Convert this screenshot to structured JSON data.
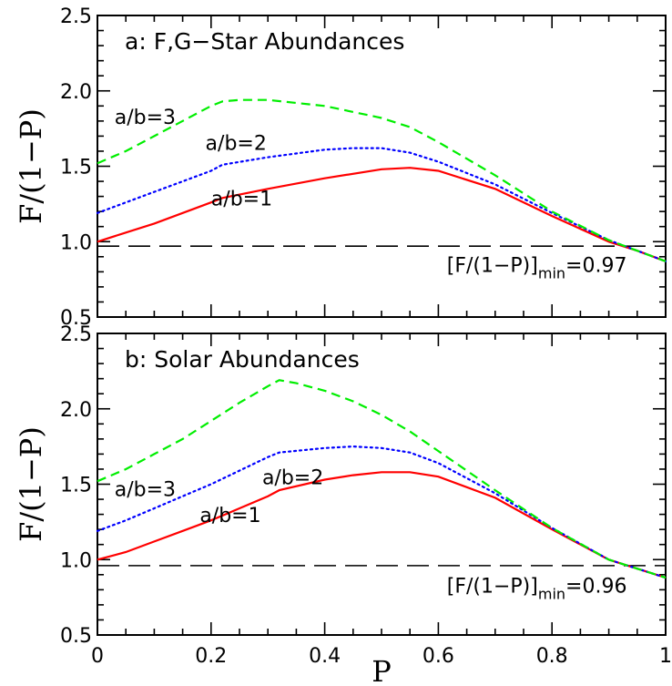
{
  "xlabel": "P",
  "chart_data": [
    {
      "type": "line",
      "title": "a: F,G−Star Abundances",
      "xlabel": "P",
      "ylabel": "F/(1−P)",
      "xlim": [
        0,
        1
      ],
      "ylim": [
        0.5,
        2.5
      ],
      "xticks": [
        "0",
        "0.2",
        "0.4",
        "0.6",
        "0.8",
        "1"
      ],
      "yticks": [
        "0.5",
        "1.0",
        "1.5",
        "2.0",
        "2.5"
      ],
      "series": [
        {
          "name": "a/b=1",
          "color": "#ff0000",
          "style": "solid",
          "label_at": [
            0.2,
            1.24
          ],
          "x": [
            0,
            0.05,
            0.1,
            0.15,
            0.2,
            0.22,
            0.3,
            0.4,
            0.5,
            0.55,
            0.6,
            0.7,
            0.8,
            0.9,
            0.95,
            1.0
          ],
          "y": [
            1.0,
            1.06,
            1.12,
            1.19,
            1.26,
            1.29,
            1.35,
            1.42,
            1.48,
            1.49,
            1.47,
            1.35,
            1.17,
            1.0,
            0.94,
            0.87
          ]
        },
        {
          "name": "a/b=2",
          "color": "#0000ff",
          "style": "dotted",
          "label_at": [
            0.19,
            1.61
          ],
          "x": [
            0,
            0.05,
            0.1,
            0.15,
            0.2,
            0.22,
            0.3,
            0.4,
            0.45,
            0.5,
            0.55,
            0.6,
            0.7,
            0.8,
            0.9,
            0.95,
            1.0
          ],
          "y": [
            1.19,
            1.26,
            1.33,
            1.4,
            1.47,
            1.51,
            1.56,
            1.61,
            1.62,
            1.62,
            1.59,
            1.53,
            1.38,
            1.19,
            1.01,
            0.94,
            0.87
          ]
        },
        {
          "name": "a/b=3",
          "color": "#00ee00",
          "style": "dashed",
          "label_at": [
            0.03,
            1.78
          ],
          "x": [
            0,
            0.05,
            0.1,
            0.15,
            0.2,
            0.22,
            0.25,
            0.3,
            0.35,
            0.4,
            0.5,
            0.55,
            0.6,
            0.7,
            0.8,
            0.9,
            0.95,
            1.0
          ],
          "y": [
            1.52,
            1.6,
            1.7,
            1.8,
            1.9,
            1.93,
            1.94,
            1.94,
            1.92,
            1.9,
            1.82,
            1.76,
            1.66,
            1.44,
            1.2,
            1.01,
            0.94,
            0.87
          ]
        }
      ],
      "hline": {
        "y": 0.97,
        "style": "long-dashed",
        "color": "#000000"
      },
      "annotation": {
        "text": "[F/(1−P)]",
        "subscript": "min",
        "value_text": "=0.97",
        "at": [
          0.615,
          0.8
        ]
      }
    },
    {
      "type": "line",
      "title": "b: Solar Abundances",
      "xlabel": "P",
      "ylabel": "F/(1−P)",
      "xlim": [
        0,
        1
      ],
      "ylim": [
        0.5,
        2.5
      ],
      "xticks": [
        "0",
        "0.2",
        "0.4",
        "0.6",
        "0.8",
        "1"
      ],
      "yticks": [
        "0.5",
        "1.0",
        "1.5",
        "2.0",
        "2.5"
      ],
      "series": [
        {
          "name": "a/b=1",
          "color": "#ff0000",
          "style": "solid",
          "label_at": [
            0.18,
            1.25
          ],
          "x": [
            0,
            0.05,
            0.1,
            0.15,
            0.2,
            0.25,
            0.3,
            0.32,
            0.4,
            0.45,
            0.5,
            0.55,
            0.6,
            0.7,
            0.8,
            0.9,
            0.95,
            1.0
          ],
          "y": [
            1.0,
            1.05,
            1.12,
            1.19,
            1.26,
            1.34,
            1.42,
            1.46,
            1.53,
            1.56,
            1.58,
            1.58,
            1.55,
            1.41,
            1.2,
            1.0,
            0.94,
            0.88
          ]
        },
        {
          "name": "a/b=2",
          "color": "#0000ff",
          "style": "dotted",
          "label_at": [
            0.29,
            1.5
          ],
          "x": [
            0,
            0.05,
            0.1,
            0.15,
            0.2,
            0.25,
            0.3,
            0.32,
            0.4,
            0.45,
            0.5,
            0.55,
            0.6,
            0.7,
            0.8,
            0.9,
            0.95,
            1.0
          ],
          "y": [
            1.19,
            1.26,
            1.34,
            1.42,
            1.5,
            1.59,
            1.68,
            1.71,
            1.74,
            1.75,
            1.74,
            1.71,
            1.64,
            1.44,
            1.21,
            1.0,
            0.94,
            0.88
          ]
        },
        {
          "name": "a/b=3",
          "color": "#00ee00",
          "style": "dashed",
          "label_at": [
            0.03,
            1.42
          ],
          "x": [
            0,
            0.05,
            0.1,
            0.15,
            0.2,
            0.25,
            0.3,
            0.32,
            0.35,
            0.4,
            0.45,
            0.5,
            0.55,
            0.6,
            0.7,
            0.8,
            0.9,
            0.95,
            1.0
          ],
          "y": [
            1.52,
            1.6,
            1.7,
            1.8,
            1.92,
            2.04,
            2.15,
            2.19,
            2.17,
            2.12,
            2.05,
            1.96,
            1.85,
            1.72,
            1.46,
            1.21,
            1.0,
            0.94,
            0.88
          ]
        }
      ],
      "hline": {
        "y": 0.96,
        "style": "long-dashed",
        "color": "#000000"
      },
      "annotation": {
        "text": "[F/(1−P)]",
        "subscript": "min",
        "value_text": "=0.96",
        "at": [
          0.615,
          0.78
        ]
      }
    }
  ]
}
